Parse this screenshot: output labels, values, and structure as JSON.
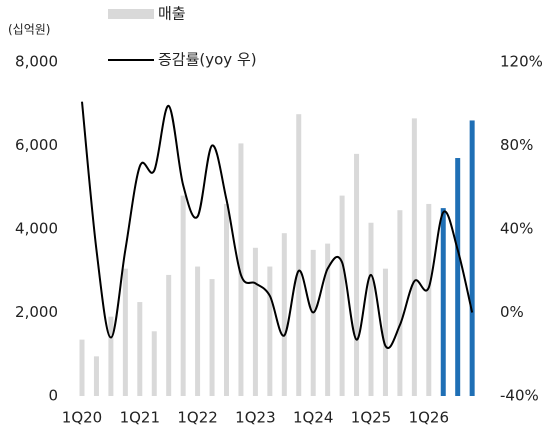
{
  "chart_data": {
    "type": "bar-line",
    "unit_label": "(십억원)",
    "categories": [
      "1Q20",
      null,
      null,
      null,
      "1Q21",
      null,
      null,
      null,
      "1Q22",
      null,
      null,
      null,
      "1Q23",
      null,
      null,
      null,
      "1Q24",
      null,
      null,
      null,
      "1Q25",
      null,
      null,
      null,
      "1Q26",
      null,
      null,
      null
    ],
    "series": [
      {
        "name": "매출",
        "type": "bar",
        "color": "#d9d9d9",
        "colors": [
          "#d9d9d9",
          "#d9d9d9",
          "#d9d9d9",
          "#d9d9d9",
          "#d9d9d9",
          "#d9d9d9",
          "#d9d9d9",
          "#d9d9d9",
          "#d9d9d9",
          "#d9d9d9",
          "#d9d9d9",
          "#d9d9d9",
          "#d9d9d9",
          "#d9d9d9",
          "#d9d9d9",
          "#d9d9d9",
          "#d9d9d9",
          "#d9d9d9",
          "#d9d9d9",
          "#d9d9d9",
          "#d9d9d9",
          "#d9d9d9",
          "#d9d9d9",
          "#d9d9d9",
          "#d9d9d9",
          "#1f6fb5",
          "#1f6fb5",
          "#1f6fb5"
        ],
        "values": [
          1350,
          950,
          1900,
          3050,
          2250,
          1550,
          2900,
          4800,
          3100,
          2800,
          4600,
          6050,
          3550,
          3100,
          3900,
          6750,
          3500,
          3650,
          4800,
          5800,
          4150,
          3050,
          4450,
          6650,
          4600,
          4500,
          5700,
          6600
        ]
      },
      {
        "name": "증감률(yoy 우)",
        "type": "line",
        "axis": "y2",
        "color": "#000000",
        "values": [
          101,
          30,
          -12,
          30,
          70,
          68,
          99,
          61,
          46,
          80,
          54,
          18,
          14,
          8,
          -11,
          20,
          0,
          21,
          24,
          -13,
          18,
          -16,
          -6,
          15,
          12,
          48,
          30,
          0
        ]
      }
    ],
    "ylim": [
      0,
      8000
    ],
    "yticks": [
      0,
      {
        "value": 2000,
        "label": "2,000"
      },
      {
        "value": 4000,
        "label": "4,000"
      },
      {
        "value": 6000,
        "label": "6,000"
      },
      {
        "value": 8000,
        "label": "8,000"
      }
    ],
    "y2lim": [
      -40,
      120
    ],
    "y2ticks": [
      {
        "value": -40,
        "label": "-40%"
      },
      {
        "value": 0,
        "label": "0%"
      },
      {
        "value": 40,
        "label": "40%"
      },
      {
        "value": 80,
        "label": "80%"
      },
      {
        "value": 120,
        "label": "120%"
      }
    ]
  }
}
